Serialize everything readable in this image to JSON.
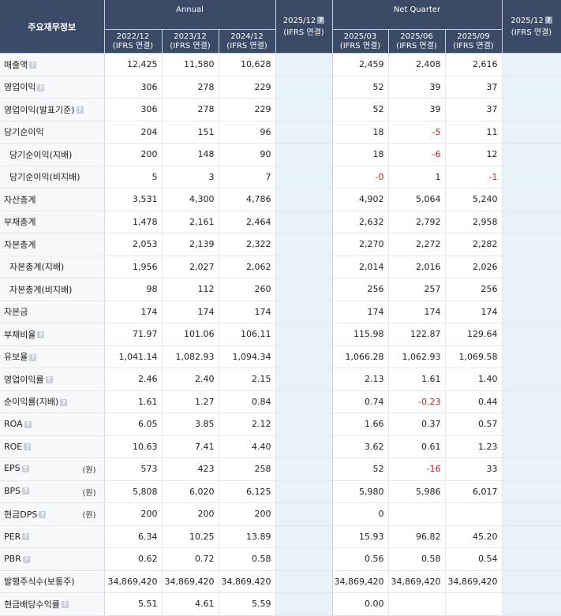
{
  "header": {
    "title": "주요재무정보",
    "annual_label": "Annual",
    "quarter_label": "Net Quarter",
    "estimate_col": "2025/12",
    "basis": "(IFRS 연결)",
    "annual_cols": [
      "2022/12",
      "2023/12",
      "2024/12"
    ],
    "quarter_cols": [
      "2025/03",
      "2025/06",
      "2025/09"
    ],
    "help_icon": "question-mark-icon"
  },
  "rows": [
    {
      "label": "매출액",
      "help": true,
      "unit": "",
      "indent": false,
      "annual": [
        "12,425",
        "11,580",
        "10,628"
      ],
      "quarter": [
        "2,459",
        "2,408",
        "2,616"
      ]
    },
    {
      "label": "영업이익",
      "help": true,
      "unit": "",
      "indent": false,
      "annual": [
        "306",
        "278",
        "229"
      ],
      "quarter": [
        "52",
        "39",
        "37"
      ]
    },
    {
      "label": "영업이익(발표기준)",
      "help": true,
      "unit": "",
      "indent": false,
      "annual": [
        "306",
        "278",
        "229"
      ],
      "quarter": [
        "52",
        "39",
        "37"
      ]
    },
    {
      "label": "당기순이익",
      "help": false,
      "unit": "",
      "indent": false,
      "annual": [
        "204",
        "151",
        "96"
      ],
      "quarter": [
        "18",
        "-5",
        "11"
      ]
    },
    {
      "label": "당기순이익(지배)",
      "help": false,
      "unit": "",
      "indent": true,
      "annual": [
        "200",
        "148",
        "90"
      ],
      "quarter": [
        "18",
        "-6",
        "12"
      ]
    },
    {
      "label": "당기순이익(비지배)",
      "help": false,
      "unit": "",
      "indent": true,
      "annual": [
        "5",
        "3",
        "7"
      ],
      "quarter": [
        "-0",
        "1",
        "-1"
      ]
    },
    {
      "label": "자산총계",
      "help": false,
      "unit": "",
      "indent": false,
      "annual": [
        "3,531",
        "4,300",
        "4,786"
      ],
      "quarter": [
        "4,902",
        "5,064",
        "5,240"
      ]
    },
    {
      "label": "부채총계",
      "help": false,
      "unit": "",
      "indent": false,
      "annual": [
        "1,478",
        "2,161",
        "2,464"
      ],
      "quarter": [
        "2,632",
        "2,792",
        "2,958"
      ]
    },
    {
      "label": "자본총계",
      "help": false,
      "unit": "",
      "indent": false,
      "annual": [
        "2,053",
        "2,139",
        "2,322"
      ],
      "quarter": [
        "2,270",
        "2,272",
        "2,282"
      ]
    },
    {
      "label": "자본총계(지배)",
      "help": false,
      "unit": "",
      "indent": true,
      "annual": [
        "1,956",
        "2,027",
        "2,062"
      ],
      "quarter": [
        "2,014",
        "2,016",
        "2,026"
      ]
    },
    {
      "label": "자본총계(비지배)",
      "help": false,
      "unit": "",
      "indent": true,
      "annual": [
        "98",
        "112",
        "260"
      ],
      "quarter": [
        "256",
        "257",
        "256"
      ]
    },
    {
      "label": "자본금",
      "help": false,
      "unit": "",
      "indent": false,
      "annual": [
        "174",
        "174",
        "174"
      ],
      "quarter": [
        "174",
        "174",
        "174"
      ]
    },
    {
      "label": "부채비율",
      "help": true,
      "unit": "",
      "indent": false,
      "annual": [
        "71.97",
        "101.06",
        "106.11"
      ],
      "quarter": [
        "115.98",
        "122.87",
        "129.64"
      ]
    },
    {
      "label": "유보율",
      "help": true,
      "unit": "",
      "indent": false,
      "annual": [
        "1,041.14",
        "1,082.93",
        "1,094.34"
      ],
      "quarter": [
        "1,066.28",
        "1,062.93",
        "1,069.58"
      ]
    },
    {
      "label": "영업이익률",
      "help": true,
      "unit": "",
      "indent": false,
      "annual": [
        "2.46",
        "2.40",
        "2.15"
      ],
      "quarter": [
        "2.13",
        "1.61",
        "1.40"
      ]
    },
    {
      "label": "순이익률(지배)",
      "help": true,
      "unit": "",
      "indent": false,
      "annual": [
        "1.61",
        "1.27",
        "0.84"
      ],
      "quarter": [
        "0.74",
        "-0.23",
        "0.44"
      ]
    },
    {
      "label": "ROA",
      "help": true,
      "unit": "",
      "indent": false,
      "annual": [
        "6.05",
        "3.85",
        "2.12"
      ],
      "quarter": [
        "1.66",
        "0.37",
        "0.57"
      ]
    },
    {
      "label": "ROE",
      "help": true,
      "unit": "",
      "indent": false,
      "annual": [
        "10.63",
        "7.41",
        "4.40"
      ],
      "quarter": [
        "3.62",
        "0.61",
        "1.23"
      ]
    },
    {
      "label": "EPS",
      "help": true,
      "unit": "(원)",
      "indent": false,
      "annual": [
        "573",
        "423",
        "258"
      ],
      "quarter": [
        "52",
        "-16",
        "33"
      ]
    },
    {
      "label": "BPS",
      "help": true,
      "unit": "(원)",
      "indent": false,
      "annual": [
        "5,808",
        "6,020",
        "6,125"
      ],
      "quarter": [
        "5,980",
        "5,986",
        "6,017"
      ]
    },
    {
      "label": "현금DPS",
      "help": true,
      "unit": "(원)",
      "indent": false,
      "annual": [
        "200",
        "200",
        "200"
      ],
      "quarter": [
        "0",
        "",
        ""
      ]
    },
    {
      "label": "PER",
      "help": true,
      "unit": "",
      "indent": false,
      "annual": [
        "6.34",
        "10.25",
        "13.89"
      ],
      "quarter": [
        "15.93",
        "96.82",
        "45.20"
      ]
    },
    {
      "label": "PBR",
      "help": true,
      "unit": "",
      "indent": false,
      "annual": [
        "0.62",
        "0.72",
        "0.58"
      ],
      "quarter": [
        "0.56",
        "0.58",
        "0.54"
      ]
    },
    {
      "label": "발행주식수(보통주)",
      "help": false,
      "unit": "",
      "indent": false,
      "annual": [
        "34,869,420",
        "34,869,420",
        "34,869,420"
      ],
      "quarter": [
        "34,869,420",
        "34,869,420",
        "34,869,420"
      ]
    },
    {
      "label": "현금배당수익률",
      "help": true,
      "unit": "",
      "indent": false,
      "annual": [
        "5.51",
        "4.61",
        "5.59"
      ],
      "quarter": [
        "0.00",
        "",
        ""
      ]
    }
  ]
}
